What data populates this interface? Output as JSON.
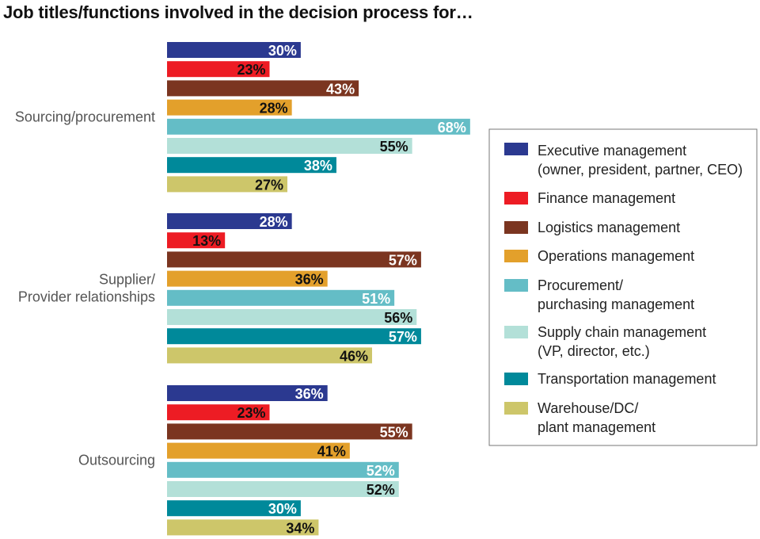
{
  "chart_data": {
    "type": "bar",
    "orientation": "horizontal",
    "title": "Job titles/functions involved in the decision process for…",
    "categories": [
      [
        "Sourcing/procurement"
      ],
      [
        "Supplier/",
        "Provider relationships"
      ],
      [
        "Outsourcing"
      ]
    ],
    "value_suffix": "%",
    "xlim": [
      0,
      100
    ],
    "grid": false,
    "legend_position": "right",
    "series": [
      {
        "name": "Executive management",
        "name_line2": "(owner, president, partner, CEO)",
        "color": "#2b3990",
        "label_color": "#ffffff",
        "values": [
          30,
          28,
          36
        ]
      },
      {
        "name": "Finance management",
        "name_line2": "",
        "color": "#ed1c24",
        "label_color": "#111111",
        "values": [
          23,
          13,
          23
        ]
      },
      {
        "name": "Logistics management",
        "name_line2": "",
        "color": "#7b3520",
        "label_color": "#ffffff",
        "values": [
          43,
          57,
          55
        ]
      },
      {
        "name": "Operations management",
        "name_line2": "",
        "color": "#e3a02b",
        "label_color": "#111111",
        "values": [
          28,
          36,
          41
        ]
      },
      {
        "name": "Procurement/",
        "name_line2": "purchasing management",
        "color": "#64bdc6",
        "label_color": "#ffffff",
        "values": [
          68,
          51,
          52
        ]
      },
      {
        "name": "Supply chain management",
        "name_line2": "(VP, director, etc.)",
        "color": "#b3e0d8",
        "label_color": "#111111",
        "values": [
          55,
          56,
          52
        ]
      },
      {
        "name": "Transportation management",
        "name_line2": "",
        "color": "#00899a",
        "label_color": "#ffffff",
        "values": [
          38,
          57,
          30
        ]
      },
      {
        "name": "Warehouse/DC/",
        "name_line2": "plant management",
        "color": "#cdc66a",
        "label_color": "#111111",
        "values": [
          27,
          46,
          34
        ]
      }
    ]
  }
}
